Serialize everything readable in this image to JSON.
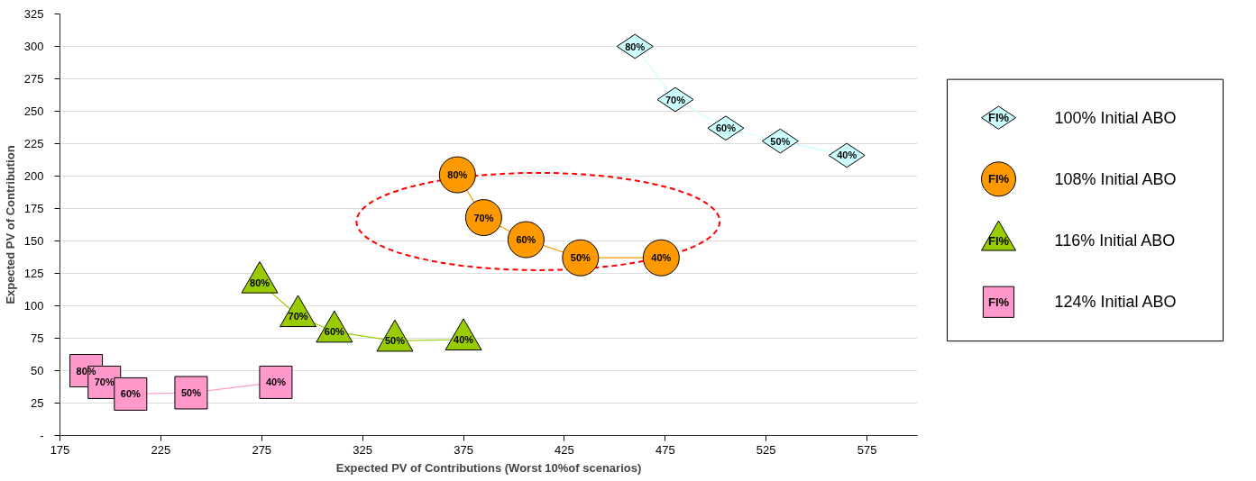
{
  "chart_data": {
    "type": "line",
    "xlabel": "Expected PV of Contributions (Worst 10%of scenarios)",
    "ylabel": "Expected PV of Contribution",
    "xlim": [
      175,
      600
    ],
    "xticks": [
      175,
      225,
      275,
      325,
      375,
      425,
      475,
      525,
      575
    ],
    "ylim": [
      0,
      325
    ],
    "yticks": [
      {
        "value": 0,
        "label": "-"
      },
      25,
      50,
      75,
      100,
      125,
      150,
      175,
      200,
      225,
      250,
      275,
      300,
      325
    ],
    "grid": "y",
    "legend": "right",
    "line_style": "solid",
    "annotations": [
      "FI%",
      {
        "text": "80%",
        "x": 460,
        "y": 300
      },
      {
        "text": "70%",
        "x": 480,
        "y": 259
      },
      {
        "text": "60%",
        "x": 505,
        "y": 237
      },
      {
        "text": "50%",
        "x": 532,
        "y": 227
      },
      {
        "text": "40%",
        "x": 565,
        "y": 216
      },
      {
        "text": "80%",
        "x": 372,
        "y": 201
      },
      {
        "text": "70%",
        "x": 385,
        "y": 168
      },
      {
        "text": "60%",
        "x": 406,
        "y": 151
      },
      {
        "text": "50%",
        "x": 433,
        "y": 137
      },
      {
        "text": "40%",
        "x": 473,
        "y": 137
      },
      {
        "text": "80%",
        "x": 274,
        "y": 118
      },
      {
        "text": "70%",
        "x": 293,
        "y": 92
      },
      {
        "text": "60%",
        "x": 311,
        "y": 80
      },
      {
        "text": "50%",
        "x": 341,
        "y": 73
      },
      {
        "text": "40%",
        "x": 375,
        "y": 74
      },
      {
        "text": "80%",
        "x": 188,
        "y": 50
      },
      {
        "text": "70%",
        "x": 197,
        "y": 41
      },
      {
        "text": "60%",
        "x": 210,
        "y": 32
      },
      {
        "text": "50%",
        "x": 240,
        "y": 33
      },
      {
        "text": "40%",
        "x": 282,
        "y": 41
      }
    ],
    "series": [
      {
        "name": "100% Initial ABO",
        "color": "#ccffff",
        "marker": "diamond",
        "x": [
          460,
          480,
          505,
          532,
          565
        ],
        "values": [
          300,
          259,
          237,
          227,
          216
        ]
      },
      {
        "name": "108% Initial ABO",
        "color": "#ff9900",
        "marker": "circle",
        "x": [
          372,
          385,
          406,
          433,
          473
        ],
        "values": [
          201,
          168,
          151,
          137,
          137
        ]
      },
      {
        "name": "116% Initial ABO",
        "color": "#99cc00",
        "marker": "triangle",
        "x": [
          274,
          293,
          311,
          341,
          375
        ],
        "values": [
          118,
          92,
          80,
          73,
          74
        ]
      },
      {
        "name": "124% Initial ABO",
        "color": "#ff99cc",
        "marker": "square",
        "x": [
          188,
          197,
          210,
          240,
          282
        ],
        "values": [
          50,
          41,
          32,
          33,
          41
        ]
      }
    ]
  }
}
